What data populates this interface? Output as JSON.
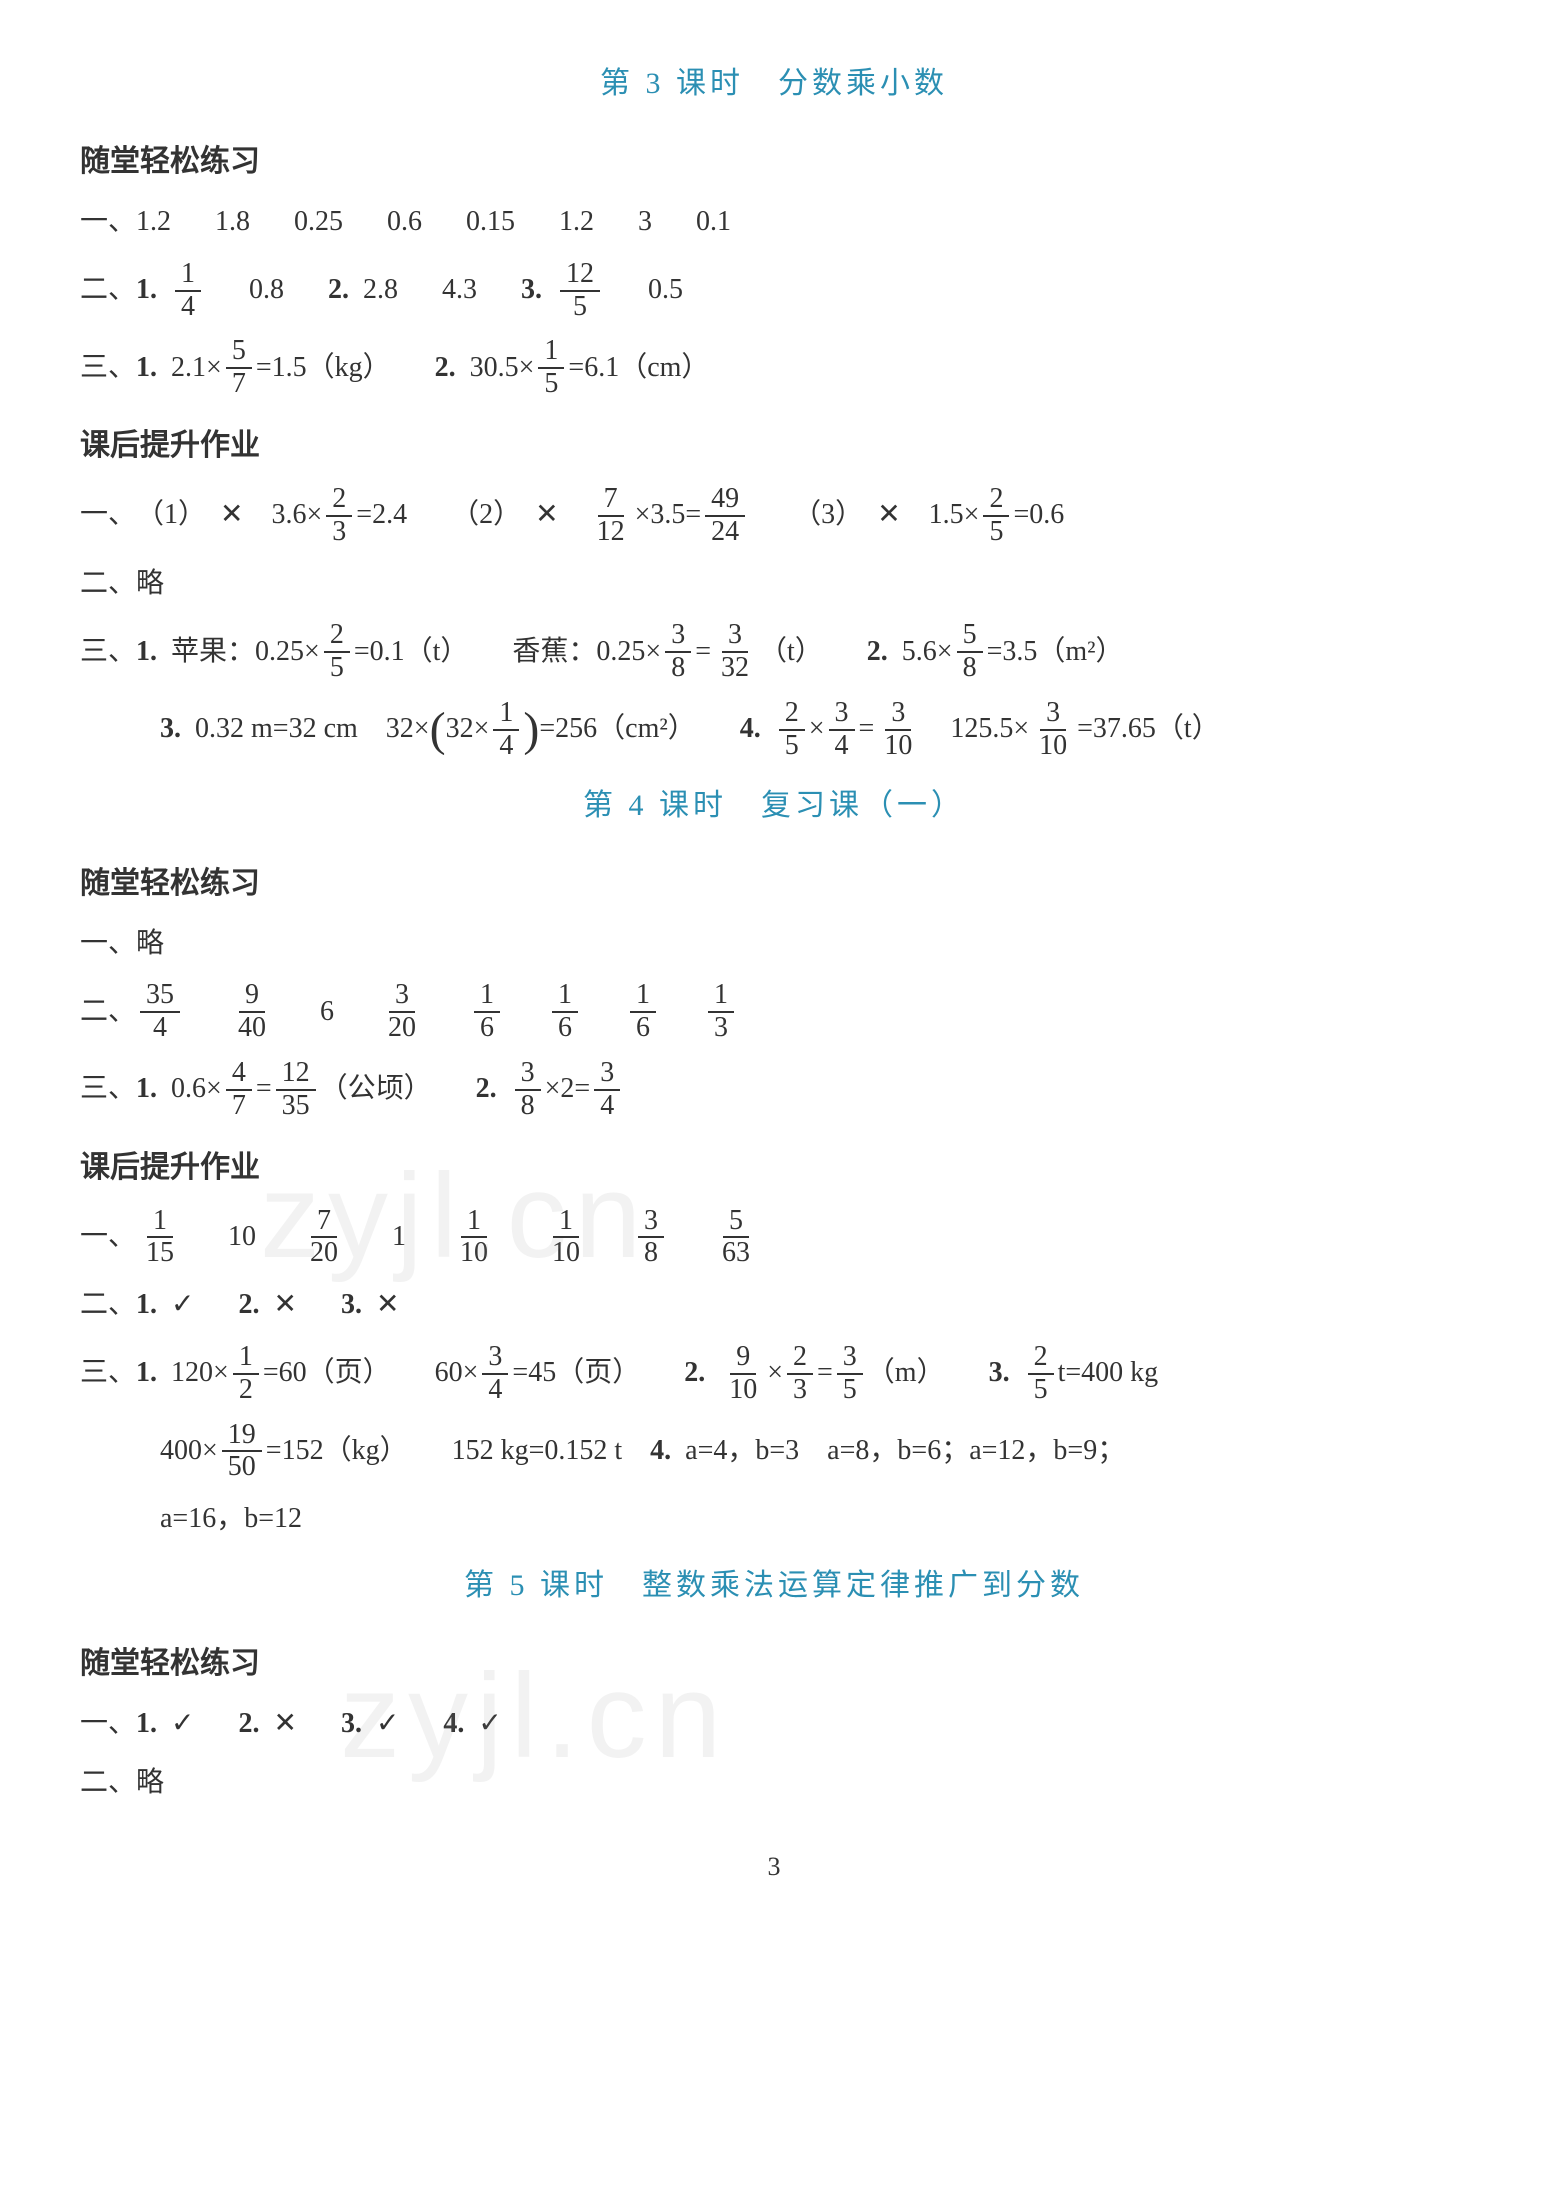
{
  "page_number": "3",
  "colors": {
    "title": "#2b8fb3",
    "text": "#333333",
    "bg": "#ffffff",
    "watermark": "rgba(150,150,150,0.12)"
  },
  "typography": {
    "body_fontsize_pt": 21,
    "title_fontsize_pt": 23,
    "font_family": "SimSun"
  },
  "watermarks": [
    "zyjl.cn",
    "zyjl.cn"
  ],
  "lesson3": {
    "title": "第 3 课时　分数乘小数",
    "sec1": {
      "header": "随堂轻松练习",
      "q1": {
        "label": "一、",
        "values": [
          "1.2",
          "1.8",
          "0.25",
          "0.6",
          "0.15",
          "1.2",
          "3",
          "0.1"
        ]
      },
      "q2": {
        "label": "二、",
        "items": [
          {
            "n": "1.",
            "frac": {
              "num": "1",
              "den": "4"
            },
            "after": "0.8"
          },
          {
            "n": "2.",
            "vals": [
              "2.8",
              "4.3"
            ]
          },
          {
            "n": "3.",
            "frac": {
              "num": "12",
              "den": "5"
            },
            "after": "0.5"
          }
        ]
      },
      "q3": {
        "label": "三、",
        "items": [
          {
            "n": "1.",
            "pre": "2.1×",
            "frac": {
              "num": "5",
              "den": "7"
            },
            "eq": "=1.5（kg）"
          },
          {
            "n": "2.",
            "pre": "30.5×",
            "frac": {
              "num": "1",
              "den": "5"
            },
            "eq": "=6.1（cm）"
          }
        ]
      }
    },
    "sec2": {
      "header": "课后提升作业",
      "q1": {
        "label": "一、",
        "items": [
          {
            "paren": "（1）",
            "mark": "✕",
            "pre": "3.6×",
            "frac": {
              "num": "2",
              "den": "3"
            },
            "eq": "=2.4"
          },
          {
            "paren": "（2）",
            "mark": "✕",
            "frac1": {
              "num": "7",
              "den": "12"
            },
            "mid": "×3.5=",
            "frac2": {
              "num": "49",
              "den": "24"
            }
          },
          {
            "paren": "（3）",
            "mark": "✕",
            "pre": "1.5×",
            "frac": {
              "num": "2",
              "den": "5"
            },
            "eq": "=0.6"
          }
        ]
      },
      "q2": {
        "label": "二、",
        "text": "略"
      },
      "q3": {
        "label": "三、",
        "line1": [
          {
            "n": "1.",
            "pre": "苹果：0.25×",
            "frac": {
              "num": "2",
              "den": "5"
            },
            "eq": "=0.1（t）"
          },
          {
            "pre": "香蕉：0.25×",
            "frac": {
              "num": "3",
              "den": "8"
            },
            "mid": "=",
            "frac2": {
              "num": "3",
              "den": "32"
            },
            "eq": "（t）"
          },
          {
            "n": "2.",
            "pre": "5.6×",
            "frac": {
              "num": "5",
              "den": "8"
            },
            "eq": "=3.5（m²）"
          }
        ],
        "line2": [
          {
            "n": "3.",
            "pre": "0.32 m=32 cm",
            "pre2": "32×",
            "bigL": "(",
            "inner_pre": "32×",
            "frac": {
              "num": "1",
              "den": "4"
            },
            "bigR": ")",
            "eq": "=256（cm²）"
          },
          {
            "n": "4.",
            "frac1": {
              "num": "2",
              "den": "5"
            },
            "mid1": "×",
            "frac2": {
              "num": "3",
              "den": "4"
            },
            "mid2": "=",
            "frac3": {
              "num": "3",
              "den": "10"
            },
            "pre2": "125.5×",
            "frac4": {
              "num": "3",
              "den": "10"
            },
            "eq": "=37.65（t）"
          }
        ]
      }
    }
  },
  "lesson4": {
    "title": "第 4 课时　复习课（一）",
    "sec1": {
      "header": "随堂轻松练习",
      "q1": {
        "label": "一、",
        "text": "略"
      },
      "q2": {
        "label": "二、",
        "fracs": [
          {
            "num": "35",
            "den": "4"
          },
          {
            "num": "9",
            "den": "40"
          },
          {
            "plain": "6"
          },
          {
            "num": "3",
            "den": "20"
          },
          {
            "num": "1",
            "den": "6"
          },
          {
            "num": "1",
            "den": "6"
          },
          {
            "num": "1",
            "den": "6"
          },
          {
            "num": "1",
            "den": "3"
          }
        ]
      },
      "q3": {
        "label": "三、",
        "items": [
          {
            "n": "1.",
            "pre": "0.6×",
            "frac1": {
              "num": "4",
              "den": "7"
            },
            "mid": "=",
            "frac2": {
              "num": "12",
              "den": "35"
            },
            "eq": "（公顷）"
          },
          {
            "n": "2.",
            "frac1": {
              "num": "3",
              "den": "8"
            },
            "mid": "×2=",
            "frac2": {
              "num": "3",
              "den": "4"
            }
          }
        ]
      }
    },
    "sec2": {
      "header": "课后提升作业",
      "q1": {
        "label": "一、",
        "fracs": [
          {
            "num": "1",
            "den": "15"
          },
          {
            "plain": "10"
          },
          {
            "num": "7",
            "den": "20"
          },
          {
            "plain": "1"
          },
          {
            "num": "1",
            "den": "10"
          },
          {
            "num": "1",
            "den": "10"
          },
          {
            "num": "3",
            "den": "8"
          },
          {
            "num": "5",
            "den": "63"
          }
        ]
      },
      "q2": {
        "label": "二、",
        "items": [
          {
            "n": "1.",
            "mark": "✓"
          },
          {
            "n": "2.",
            "mark": "✕"
          },
          {
            "n": "3.",
            "mark": "✕"
          }
        ]
      },
      "q3": {
        "label": "三、",
        "line1": [
          {
            "n": "1.",
            "pre": "120×",
            "frac": {
              "num": "1",
              "den": "2"
            },
            "eq": "=60（页）"
          },
          {
            "pre": "60×",
            "frac": {
              "num": "3",
              "den": "4"
            },
            "eq": "=45（页）"
          },
          {
            "n": "2.",
            "frac1": {
              "num": "9",
              "den": "10"
            },
            "mid1": "×",
            "frac2": {
              "num": "2",
              "den": "3"
            },
            "mid2": "=",
            "frac3": {
              "num": "3",
              "den": "5"
            },
            "eq": "（m）"
          },
          {
            "n": "3.",
            "frac": {
              "num": "2",
              "den": "5"
            },
            "eq": "t=400 kg"
          }
        ],
        "line2": [
          {
            "pre": "400×",
            "frac": {
              "num": "19",
              "den": "50"
            },
            "eq": "=152（kg）"
          },
          {
            "text": "152 kg=0.152 t"
          },
          {
            "n": "4.",
            "text": "a=4，b=3　a=8，b=6；a=12，b=9；"
          }
        ],
        "line3": [
          {
            "text": "a=16，b=12"
          }
        ]
      }
    }
  },
  "lesson5": {
    "title": "第 5 课时　整数乘法运算定律推广到分数",
    "sec1": {
      "header": "随堂轻松练习",
      "q1": {
        "label": "一、",
        "items": [
          {
            "n": "1.",
            "mark": "✓"
          },
          {
            "n": "2.",
            "mark": "✕"
          },
          {
            "n": "3.",
            "mark": "✓"
          },
          {
            "n": "4.",
            "mark": "✓"
          }
        ]
      },
      "q2": {
        "label": "二、",
        "text": "略"
      }
    }
  }
}
